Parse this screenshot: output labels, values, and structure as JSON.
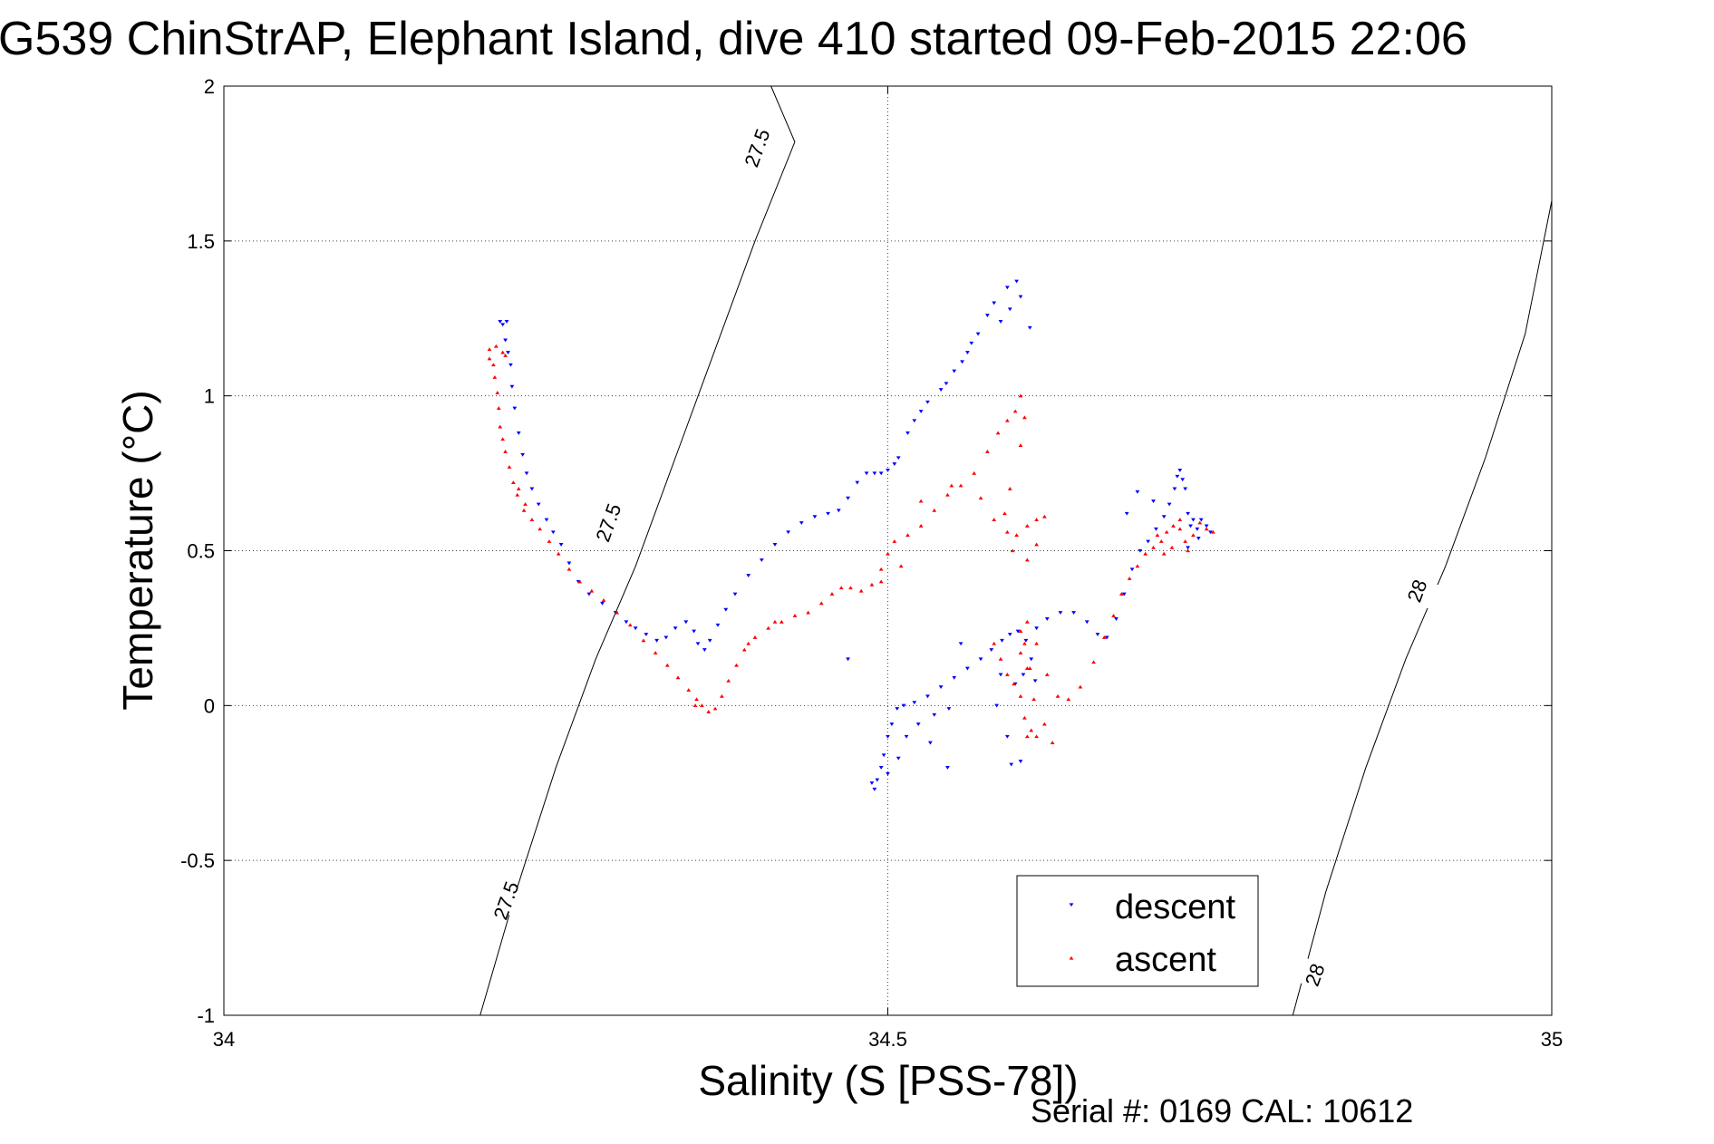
{
  "chart_data": {
    "type": "scatter",
    "title": "G539 ChinStrAP, Elephant Island, dive 410 started 09-Feb-2015 22:06",
    "xlabel": "Salinity (S [PSS-78])",
    "ylabel": "Temperature (°C)",
    "footer": "Serial #: 0169 CAL: 10612",
    "xlim": [
      34,
      35
    ],
    "ylim": [
      -1,
      2
    ],
    "xticks": [
      34,
      34.5,
      35
    ],
    "xtick_labels": [
      "34",
      "34.5",
      "35"
    ],
    "yticks": [
      -1,
      -0.5,
      0,
      0.5,
      1,
      1.5,
      2
    ],
    "ytick_labels": [
      "-1",
      "-0.5",
      "0",
      "0.5",
      "1",
      "1.5",
      "2"
    ],
    "grid": true,
    "legend_position": "bottom-right",
    "isopycnals": [
      {
        "label": "27.5",
        "points": [
          [
            34.193,
            -1.0
          ],
          [
            34.22,
            -0.6
          ],
          [
            34.25,
            -0.2
          ],
          [
            34.28,
            0.15
          ],
          [
            34.31,
            0.45
          ],
          [
            34.34,
            0.8
          ],
          [
            34.37,
            1.15
          ],
          [
            34.4,
            1.5
          ],
          [
            34.43,
            1.82
          ],
          [
            34.412,
            2.0
          ]
        ]
      },
      {
        "label": "28",
        "points": [
          [
            34.805,
            -1.0
          ],
          [
            34.83,
            -0.6
          ],
          [
            34.86,
            -0.2
          ],
          [
            34.89,
            0.15
          ],
          [
            34.92,
            0.45
          ],
          [
            34.95,
            0.8
          ],
          [
            34.98,
            1.2
          ],
          [
            35.0,
            1.63
          ]
        ]
      }
    ],
    "contour_labels": [
      {
        "text": "27.5",
        "x": 34.402,
        "y": 1.8
      },
      {
        "text": "27.5",
        "x": 34.29,
        "y": 0.59
      },
      {
        "text": "27.5",
        "x": 34.213,
        "y": -0.63
      },
      {
        "text": "28",
        "x": 34.899,
        "y": 0.37
      },
      {
        "text": "28",
        "x": 34.822,
        "y": -0.87
      }
    ],
    "series": [
      {
        "name": "descent",
        "color": "#0000ff",
        "marker": "triangle-down",
        "points": [
          [
            34.208,
            1.24
          ],
          [
            34.21,
            1.23
          ],
          [
            34.213,
            1.24
          ],
          [
            34.212,
            1.18
          ],
          [
            34.214,
            1.14
          ],
          [
            34.216,
            1.1
          ],
          [
            34.217,
            1.03
          ],
          [
            34.219,
            0.96
          ],
          [
            34.222,
            0.88
          ],
          [
            34.225,
            0.81
          ],
          [
            34.228,
            0.75
          ],
          [
            34.232,
            0.7
          ],
          [
            34.237,
            0.65
          ],
          [
            34.243,
            0.6
          ],
          [
            34.248,
            0.56
          ],
          [
            34.254,
            0.52
          ],
          [
            34.26,
            0.46
          ],
          [
            34.267,
            0.4
          ],
          [
            34.275,
            0.36
          ],
          [
            34.285,
            0.33
          ],
          [
            34.295,
            0.3
          ],
          [
            34.303,
            0.27
          ],
          [
            34.31,
            0.25
          ],
          [
            34.318,
            0.23
          ],
          [
            34.326,
            0.21
          ],
          [
            34.333,
            0.22
          ],
          [
            34.34,
            0.25
          ],
          [
            34.348,
            0.27
          ],
          [
            34.354,
            0.24
          ],
          [
            34.357,
            0.2
          ],
          [
            34.362,
            0.18
          ],
          [
            34.366,
            0.21
          ],
          [
            34.372,
            0.26
          ],
          [
            34.378,
            0.31
          ],
          [
            34.385,
            0.36
          ],
          [
            34.395,
            0.42
          ],
          [
            34.405,
            0.47
          ],
          [
            34.415,
            0.52
          ],
          [
            34.425,
            0.56
          ],
          [
            34.435,
            0.59
          ],
          [
            34.445,
            0.61
          ],
          [
            34.455,
            0.62
          ],
          [
            34.463,
            0.63
          ],
          [
            34.47,
            0.67
          ],
          [
            34.477,
            0.72
          ],
          [
            34.484,
            0.75
          ],
          [
            34.49,
            0.75
          ],
          [
            34.495,
            0.75
          ],
          [
            34.5,
            0.76
          ],
          [
            34.505,
            0.78
          ],
          [
            34.508,
            0.8
          ],
          [
            34.52,
            0.92
          ],
          [
            34.53,
            0.98
          ],
          [
            34.54,
            1.02
          ],
          [
            34.55,
            1.08
          ],
          [
            34.56,
            1.14
          ],
          [
            34.568,
            1.2
          ],
          [
            34.575,
            1.26
          ],
          [
            34.58,
            1.3
          ],
          [
            34.59,
            1.35
          ],
          [
            34.597,
            1.37
          ],
          [
            34.6,
            1.32
          ],
          [
            34.607,
            1.22
          ],
          [
            34.515,
            0.88
          ],
          [
            34.525,
            0.95
          ],
          [
            34.544,
            1.04
          ],
          [
            34.556,
            1.11
          ],
          [
            34.563,
            1.17
          ],
          [
            34.585,
            1.24
          ],
          [
            34.592,
            1.28
          ],
          [
            34.488,
            -0.25
          ],
          [
            34.49,
            -0.27
          ],
          [
            34.492,
            -0.24
          ],
          [
            34.495,
            -0.2
          ],
          [
            34.497,
            -0.16
          ],
          [
            34.5,
            -0.1
          ],
          [
            34.503,
            -0.06
          ],
          [
            34.507,
            -0.01
          ],
          [
            34.512,
            0.0
          ],
          [
            34.52,
            0.01
          ],
          [
            34.53,
            0.03
          ],
          [
            34.54,
            0.06
          ],
          [
            34.55,
            0.09
          ],
          [
            34.56,
            0.12
          ],
          [
            34.57,
            0.15
          ],
          [
            34.578,
            0.18
          ],
          [
            34.586,
            0.21
          ],
          [
            34.592,
            0.23
          ],
          [
            34.598,
            0.24
          ],
          [
            34.604,
            0.21
          ],
          [
            34.608,
            0.15
          ],
          [
            34.611,
            0.08
          ],
          [
            34.602,
            0.1
          ],
          [
            34.596,
            0.07
          ],
          [
            34.585,
            0.1
          ],
          [
            34.582,
            0.0
          ],
          [
            34.59,
            -0.1
          ],
          [
            34.593,
            -0.19
          ],
          [
            34.6,
            -0.18
          ],
          [
            34.612,
            0.25
          ],
          [
            34.62,
            0.28
          ],
          [
            34.63,
            0.3
          ],
          [
            34.64,
            0.3
          ],
          [
            34.65,
            0.27
          ],
          [
            34.658,
            0.23
          ],
          [
            34.665,
            0.22
          ],
          [
            34.672,
            0.28
          ],
          [
            34.678,
            0.36
          ],
          [
            34.684,
            0.44
          ],
          [
            34.69,
            0.5
          ],
          [
            34.696,
            0.53
          ],
          [
            34.702,
            0.57
          ],
          [
            34.708,
            0.61
          ],
          [
            34.712,
            0.65
          ],
          [
            34.716,
            0.7
          ],
          [
            34.718,
            0.74
          ],
          [
            34.72,
            0.76
          ],
          [
            34.722,
            0.73
          ],
          [
            34.724,
            0.7
          ],
          [
            34.726,
            0.62
          ],
          [
            34.728,
            0.58
          ],
          [
            34.73,
            0.6
          ],
          [
            34.733,
            0.57
          ],
          [
            34.736,
            0.6
          ],
          [
            34.74,
            0.58
          ],
          [
            34.743,
            0.56
          ],
          [
            34.734,
            0.54
          ],
          [
            34.726,
            0.51
          ],
          [
            34.7,
            0.66
          ],
          [
            34.688,
            0.69
          ],
          [
            34.68,
            0.62
          ],
          [
            34.5,
            -0.22
          ],
          [
            34.508,
            -0.17
          ],
          [
            34.514,
            -0.1
          ],
          [
            34.523,
            -0.06
          ],
          [
            34.535,
            -0.03
          ],
          [
            34.546,
            -0.01
          ],
          [
            34.47,
            0.15
          ],
          [
            34.555,
            0.2
          ],
          [
            34.545,
            -0.2
          ],
          [
            34.532,
            -0.12
          ]
        ]
      },
      {
        "name": "ascent",
        "color": "#ff0000",
        "marker": "triangle-up",
        "points": [
          [
            34.2,
            1.12
          ],
          [
            34.203,
            1.1
          ],
          [
            34.204,
            1.06
          ],
          [
            34.206,
            1.01
          ],
          [
            34.207,
            0.96
          ],
          [
            34.208,
            0.9
          ],
          [
            34.21,
            0.86
          ],
          [
            34.212,
            0.82
          ],
          [
            34.215,
            0.77
          ],
          [
            34.218,
            0.72
          ],
          [
            34.221,
            0.68
          ],
          [
            34.226,
            0.63
          ],
          [
            34.232,
            0.6
          ],
          [
            34.238,
            0.57
          ],
          [
            34.245,
            0.53
          ],
          [
            34.252,
            0.49
          ],
          [
            34.26,
            0.44
          ],
          [
            34.268,
            0.4
          ],
          [
            34.277,
            0.37
          ],
          [
            34.286,
            0.34
          ],
          [
            34.296,
            0.3
          ],
          [
            34.306,
            0.26
          ],
          [
            34.316,
            0.21
          ],
          [
            34.325,
            0.17
          ],
          [
            34.334,
            0.13
          ],
          [
            34.342,
            0.09
          ],
          [
            34.35,
            0.05
          ],
          [
            34.356,
            0.02
          ],
          [
            34.36,
            0.0
          ],
          [
            34.365,
            -0.02
          ],
          [
            34.37,
            -0.01
          ],
          [
            34.375,
            0.03
          ],
          [
            34.38,
            0.08
          ],
          [
            34.386,
            0.13
          ],
          [
            34.392,
            0.18
          ],
          [
            34.4,
            0.22
          ],
          [
            34.41,
            0.25
          ],
          [
            34.42,
            0.27
          ],
          [
            34.43,
            0.29
          ],
          [
            34.44,
            0.3
          ],
          [
            34.45,
            0.33
          ],
          [
            34.458,
            0.36
          ],
          [
            34.465,
            0.38
          ],
          [
            34.472,
            0.38
          ],
          [
            34.48,
            0.37
          ],
          [
            34.488,
            0.39
          ],
          [
            34.495,
            0.44
          ],
          [
            34.5,
            0.49
          ],
          [
            34.505,
            0.53
          ],
          [
            34.515,
            0.55
          ],
          [
            34.525,
            0.58
          ],
          [
            34.535,
            0.63
          ],
          [
            34.545,
            0.68
          ],
          [
            34.555,
            0.71
          ],
          [
            34.565,
            0.75
          ],
          [
            34.575,
            0.82
          ],
          [
            34.583,
            0.88
          ],
          [
            34.59,
            0.92
          ],
          [
            34.596,
            0.95
          ],
          [
            34.6,
            1.0
          ],
          [
            34.603,
            0.93
          ],
          [
            34.6,
            0.84
          ],
          [
            34.592,
            0.7
          ],
          [
            34.588,
            0.62
          ],
          [
            34.59,
            0.56
          ],
          [
            34.597,
            0.55
          ],
          [
            34.605,
            0.58
          ],
          [
            34.612,
            0.6
          ],
          [
            34.618,
            0.61
          ],
          [
            34.612,
            0.52
          ],
          [
            34.605,
            0.47
          ],
          [
            34.2,
            1.15
          ],
          [
            34.205,
            1.16
          ],
          [
            34.21,
            1.14
          ],
          [
            34.212,
            1.13
          ],
          [
            34.222,
            0.7
          ],
          [
            34.227,
            0.65
          ],
          [
            34.58,
            0.2
          ],
          [
            34.585,
            0.15
          ],
          [
            34.59,
            0.1
          ],
          [
            34.595,
            0.07
          ],
          [
            34.6,
            0.03
          ],
          [
            34.603,
            -0.04
          ],
          [
            34.605,
            -0.1
          ],
          [
            34.608,
            -0.08
          ],
          [
            34.61,
            0.02
          ],
          [
            34.607,
            0.12
          ],
          [
            34.603,
            0.2
          ],
          [
            34.6,
            0.24
          ],
          [
            34.605,
            0.27
          ],
          [
            34.612,
            0.2
          ],
          [
            34.62,
            0.1
          ],
          [
            34.628,
            0.03
          ],
          [
            34.636,
            0.02
          ],
          [
            34.645,
            0.06
          ],
          [
            34.655,
            0.14
          ],
          [
            34.663,
            0.22
          ],
          [
            34.67,
            0.29
          ],
          [
            34.676,
            0.36
          ],
          [
            34.682,
            0.41
          ],
          [
            34.688,
            0.45
          ],
          [
            34.694,
            0.49
          ],
          [
            34.7,
            0.51
          ],
          [
            34.706,
            0.53
          ],
          [
            34.71,
            0.56
          ],
          [
            34.715,
            0.58
          ],
          [
            34.72,
            0.57
          ],
          [
            34.724,
            0.53
          ],
          [
            34.726,
            0.5
          ],
          [
            34.73,
            0.55
          ],
          [
            34.735,
            0.59
          ],
          [
            34.74,
            0.57
          ],
          [
            34.745,
            0.56
          ],
          [
            34.72,
            0.6
          ],
          [
            34.714,
            0.51
          ],
          [
            34.708,
            0.49
          ],
          [
            34.703,
            0.55
          ],
          [
            34.612,
            -0.1
          ],
          [
            34.618,
            -0.06
          ],
          [
            34.624,
            -0.12
          ],
          [
            34.605,
            0.12
          ],
          [
            34.6,
            0.17
          ],
          [
            34.525,
            0.66
          ],
          [
            34.548,
            0.71
          ],
          [
            34.57,
            0.67
          ],
          [
            34.58,
            0.6
          ],
          [
            34.594,
            0.5
          ],
          [
            34.51,
            0.45
          ],
          [
            34.495,
            0.4
          ],
          [
            34.355,
            0.0
          ],
          [
            34.395,
            0.2
          ],
          [
            34.415,
            0.27
          ]
        ]
      }
    ]
  }
}
